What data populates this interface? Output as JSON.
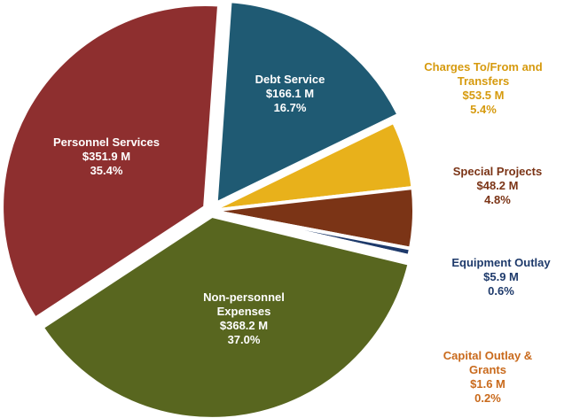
{
  "chart_data": {
    "type": "pie",
    "slices": [
      {
        "label": "Debt Service",
        "amount": "$166.1 M",
        "pct": "16.7%",
        "value": 16.7,
        "color": "#1f5a73"
      },
      {
        "label": "Charges To/From and Transfers",
        "amount": "$53.5 M",
        "pct": "5.4%",
        "value": 5.4,
        "color": "#e8b11b"
      },
      {
        "label": "Special Projects",
        "amount": "$48.2 M",
        "pct": "4.8%",
        "value": 4.8,
        "color": "#7b3416"
      },
      {
        "label": "Equipment Outlay",
        "amount": "$5.9 M",
        "pct": "0.6%",
        "value": 0.6,
        "color": "#1e3a6b"
      },
      {
        "label": "Capital Outlay & Grants",
        "amount": "$1.6 M",
        "pct": "0.2%",
        "value": 0.2,
        "color": "#66772e"
      },
      {
        "label": "Non-personnel Expenses",
        "amount": "$368.2 M",
        "pct": "37.0%",
        "value": 37.0,
        "color": "#58661f"
      },
      {
        "label": "Personnel Services",
        "amount": "$351.9 M",
        "pct": "35.4%",
        "value": 35.4,
        "color": "#8e2f2f"
      }
    ],
    "label_colors": {
      "charges": "#d69a0e",
      "special": "#7b3416",
      "equipment": "#1e3a6b",
      "capital": "#c96a1c"
    }
  }
}
